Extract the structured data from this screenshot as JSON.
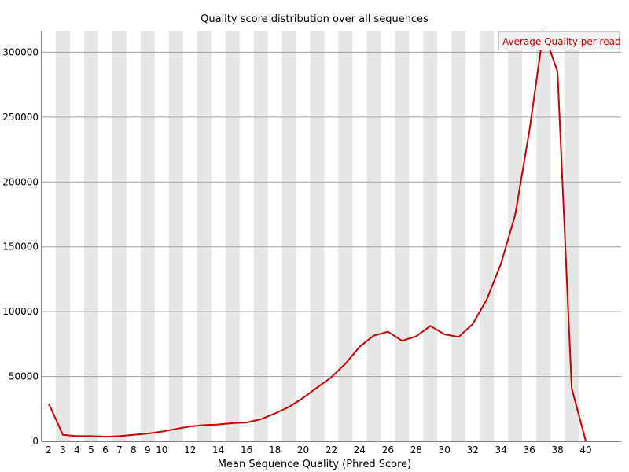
{
  "chart_data": {
    "type": "line",
    "title": "Quality score distribution over all sequences",
    "xlabel": "Mean Sequence Quality (Phred Score)",
    "ylabel": "",
    "x": [
      2,
      3,
      4,
      5,
      6,
      7,
      8,
      9,
      10,
      11,
      12,
      13,
      14,
      15,
      16,
      17,
      18,
      19,
      20,
      21,
      22,
      23,
      24,
      25,
      26,
      27,
      28,
      29,
      30,
      31,
      32,
      33,
      34,
      35,
      36,
      37,
      38,
      39,
      40
    ],
    "x_tick_labels": [
      "2",
      "3",
      "4",
      "5",
      "6",
      "7",
      "8",
      "9",
      "10",
      "12",
      "14",
      "16",
      "18",
      "20",
      "22",
      "24",
      "26",
      "28",
      "30",
      "32",
      "34",
      "36",
      "38",
      "40"
    ],
    "y_ticks": [
      0,
      50000,
      100000,
      150000,
      200000,
      250000,
      300000
    ],
    "ylim": [
      0,
      316000
    ],
    "grid": "horizontal",
    "legend_position": "top-right",
    "series": [
      {
        "name": "Average Quality per read",
        "color": "#cc0000",
        "values": [
          29000,
          5000,
          4000,
          4000,
          3500,
          4000,
          5000,
          6000,
          7500,
          9500,
          11500,
          12500,
          13000,
          14000,
          14500,
          17000,
          21500,
          26500,
          33500,
          41500,
          49500,
          60000,
          73000,
          81500,
          84500,
          77500,
          81000,
          89000,
          82500,
          80500,
          90500,
          109500,
          137000,
          174500,
          239000,
          316000,
          285000,
          41000,
          0
        ]
      }
    ],
    "stripe_color": "#e6e6e6",
    "grid_color": "#a0a0a0"
  }
}
